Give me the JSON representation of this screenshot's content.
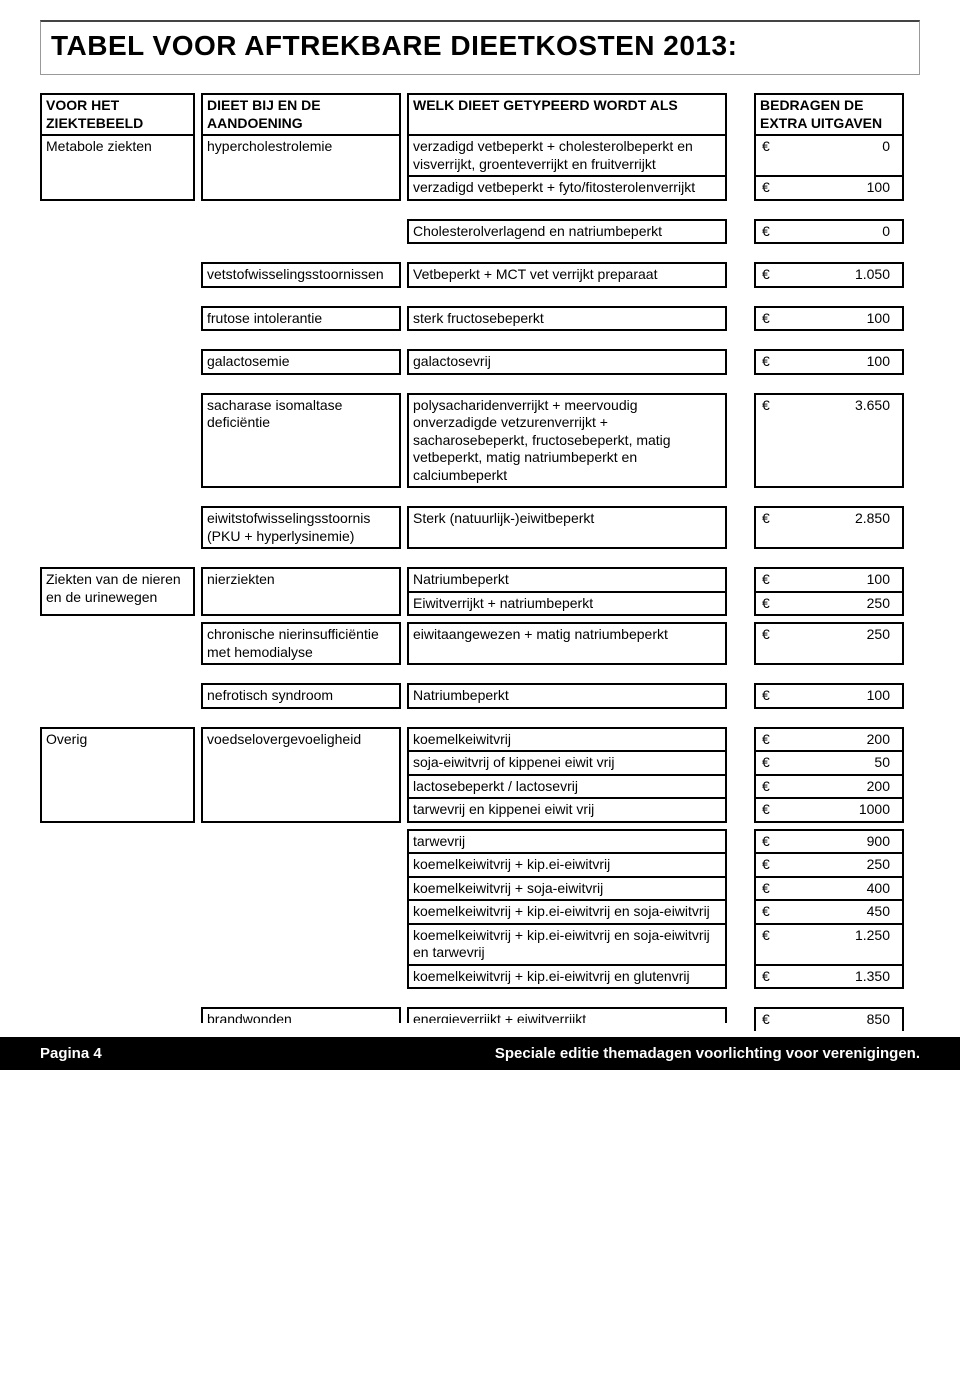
{
  "title": "TABEL VOOR AFTREKBARE DIEETKOSTEN 2013:",
  "headers": {
    "c1": "VOOR HET ZIEKTEBEELD",
    "c2": "DIEET BIJ EN DE AANDOENING",
    "c3": "WELK DIEET GETYPEERD WORDT ALS",
    "c5": "BEDRAGEN DE EXTRA UITGAVEN"
  },
  "sections": [
    {
      "ziektebeeld": "Metabole ziekten",
      "groups": [
        {
          "aandoening": "hypercholestrolemie",
          "rows": [
            {
              "dieet": "verzadigd vetbeperkt + cholesterolbeperkt en visverrijkt, groenteverrijkt en fruitverrijkt",
              "bedrag": "0"
            },
            {
              "dieet": "verzadigd vetbeperkt + fyto/fitosterolenverrijkt",
              "bedrag": "100"
            }
          ]
        },
        {
          "aandoening": "",
          "solo": true,
          "rows": [
            {
              "dieet": "Cholesterolverlagend en natriumbeperkt",
              "bedrag": "0"
            }
          ]
        },
        {
          "aandoening": "vetstofwisselingsstoornissen",
          "rows": [
            {
              "dieet": "Vetbeperkt + MCT vet verrijkt preparaat",
              "bedrag": "1.050"
            }
          ]
        },
        {
          "aandoening": "frutose intolerantie",
          "rows": [
            {
              "dieet": "sterk fructosebeperkt",
              "bedrag": "100"
            }
          ]
        },
        {
          "aandoening": "galactosemie",
          "rows": [
            {
              "dieet": "galactosevrij",
              "bedrag": "100"
            }
          ]
        },
        {
          "aandoening": "sacharase isomaltase deficiëntie",
          "rows": [
            {
              "dieet": "polysacharidenverrijkt + meervoudig onverzadigde vetzurenverrijkt + sacharosebeperkt, fructosebeperkt, matig vetbeperkt, matig natriumbeperkt en calciumbeperkt",
              "bedrag": "3.650"
            }
          ]
        },
        {
          "aandoening": "eiwitstofwisselingsstoornis (PKU + hyperlysinemie)",
          "rows": [
            {
              "dieet": "Sterk (natuurlijk-)eiwitbeperkt",
              "bedrag": "2.850"
            }
          ]
        }
      ]
    },
    {
      "ziektebeeld": "Ziekten van de nieren en de urinewegen",
      "groups": [
        {
          "aandoening": "nierziekten",
          "rows": [
            {
              "dieet": "Natriumbeperkt",
              "bedrag": "100"
            },
            {
              "dieet": "Eiwitverrijkt +  natriumbeperkt",
              "bedrag": "250"
            }
          ]
        },
        {
          "aandoening": "chronische nierinsufficiëntie met hemodialyse",
          "nogap": true,
          "rows": [
            {
              "dieet": "eiwitaangewezen + matig natriumbeperkt",
              "bedrag": "250"
            }
          ]
        },
        {
          "aandoening": "nefrotisch syndroom",
          "rows": [
            {
              "dieet": "Natriumbeperkt",
              "bedrag": "100"
            }
          ]
        }
      ]
    },
    {
      "ziektebeeld": "Overig",
      "groups": [
        {
          "aandoening": "voedselovergevoeligheid",
          "rows": [
            {
              "dieet": "koemelkeiwitvrij",
              "bedrag": "200"
            },
            {
              "dieet": "soja-eiwitvrij of kippenei eiwit vrij",
              "bedrag": "50"
            },
            {
              "dieet": "lactosebeperkt / lactosevrij",
              "bedrag": "200"
            },
            {
              "dieet": "tarwevrij en kippenei eiwit vrij",
              "bedrag": "1000"
            }
          ]
        },
        {
          "aandoening": "",
          "continued": true,
          "smallgap": true,
          "rows": [
            {
              "dieet": "tarwevrij",
              "bedrag": "900"
            },
            {
              "dieet": "koemelkeiwitvrij + kip.ei-eiwitvrij",
              "bedrag": "250"
            },
            {
              "dieet": "koemelkeiwitvrij + soja-eiwitvrij",
              "bedrag": "400"
            },
            {
              "dieet": "koemelkeiwitvrij + kip.ei-eiwitvrij en soja-eiwitvrij",
              "bedrag": "450"
            },
            {
              "dieet": "koemelkeiwitvrij + kip.ei-eiwitvrij en soja-eiwitvrij en tarwevrij",
              "bedrag": "1.250"
            },
            {
              "dieet": "koemelkeiwitvrij + kip.ei-eiwitvrij en glutenvrij",
              "bedrag": "1.350"
            }
          ]
        },
        {
          "aandoening": "brandwonden",
          "cut": true,
          "rows": [
            {
              "dieet": "energieverrijkt + eiwitverrijkt",
              "bedrag": "850"
            }
          ]
        }
      ]
    }
  ],
  "footer": {
    "left": "Pagina 4",
    "right": "Speciale editie  themadagen voorlichting voor verenigingen."
  },
  "currency": "€"
}
